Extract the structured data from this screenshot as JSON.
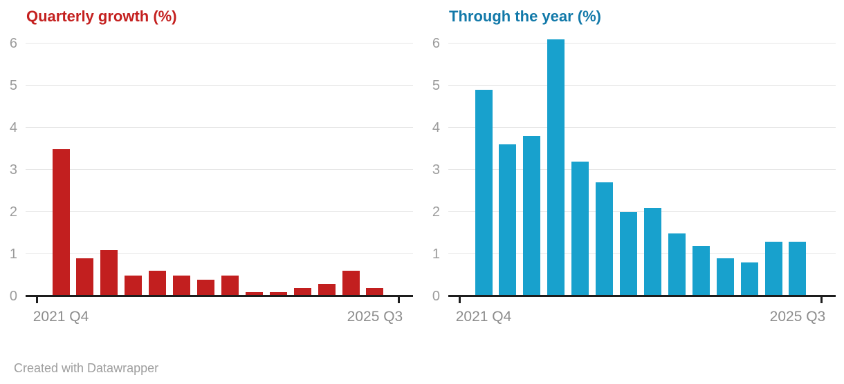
{
  "chart_data": [
    {
      "type": "bar",
      "title": "Quarterly growth (%)",
      "title_color": "#c4201f",
      "bar_color": "#c21f1f",
      "values": [
        3.5,
        0.9,
        1.1,
        0.5,
        0.6,
        0.5,
        0.4,
        0.5,
        0.1,
        0.1,
        0.2,
        0.3,
        0.6,
        0.2
      ],
      "x_tick_labels": [
        "2021 Q4",
        "2025 Q3"
      ],
      "y_ticks": [
        0,
        1,
        2,
        3,
        4,
        5,
        6
      ],
      "ylim": [
        0,
        6.5
      ],
      "xlabel": "",
      "ylabel": "",
      "grid": true,
      "legend": "none"
    },
    {
      "type": "bar",
      "title": "Through the year (%)",
      "title_color": "#1279a9",
      "bar_color": "#18a1cd",
      "values": [
        4.9,
        3.6,
        3.8,
        6.1,
        3.2,
        2.7,
        2.0,
        2.1,
        1.5,
        1.2,
        0.9,
        0.8,
        1.3,
        1.3
      ],
      "x_tick_labels": [
        "2021 Q4",
        "2025 Q3"
      ],
      "y_ticks": [
        0,
        1,
        2,
        3,
        4,
        5,
        6
      ],
      "ylim": [
        0,
        6.5
      ],
      "xlabel": "",
      "ylabel": "",
      "grid": true,
      "legend": "none"
    }
  ],
  "footer": {
    "credit": "Created with Datawrapper"
  }
}
